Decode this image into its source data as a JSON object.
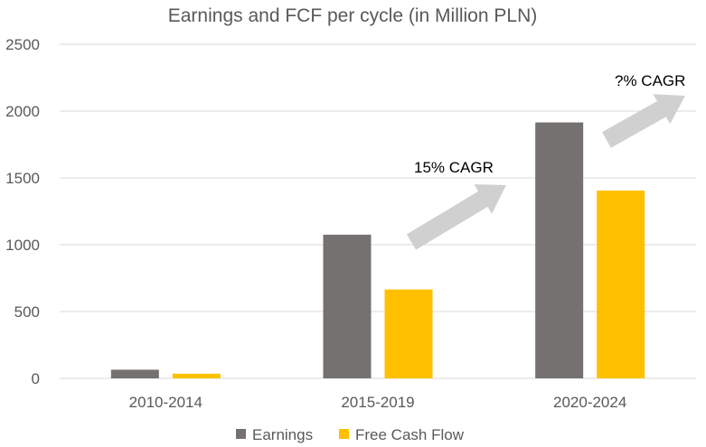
{
  "chart_data": {
    "type": "bar",
    "title": "Earnings and FCF per cycle (in Million PLN)",
    "xlabel": "",
    "ylabel": "",
    "categories": [
      "2010-2014",
      "2015-2019",
      "2020-2024"
    ],
    "series": [
      {
        "name": "Earnings",
        "values": [
          65,
          1075,
          1915
        ],
        "color": "#767171"
      },
      {
        "name": "Free Cash Flow",
        "values": [
          35,
          665,
          1405
        ],
        "color": "#FFC000"
      }
    ],
    "ylim": [
      0,
      2500
    ],
    "yticks": [
      "0",
      "500",
      "1000",
      "1500",
      "2000",
      "2500"
    ],
    "grid": true,
    "legend": "bottom",
    "annotations": [
      {
        "text": "15% CAGR",
        "arrow_color": "#d0d0d0"
      },
      {
        "text": "?% CAGR",
        "arrow_color": "#d0d0d0"
      }
    ]
  }
}
